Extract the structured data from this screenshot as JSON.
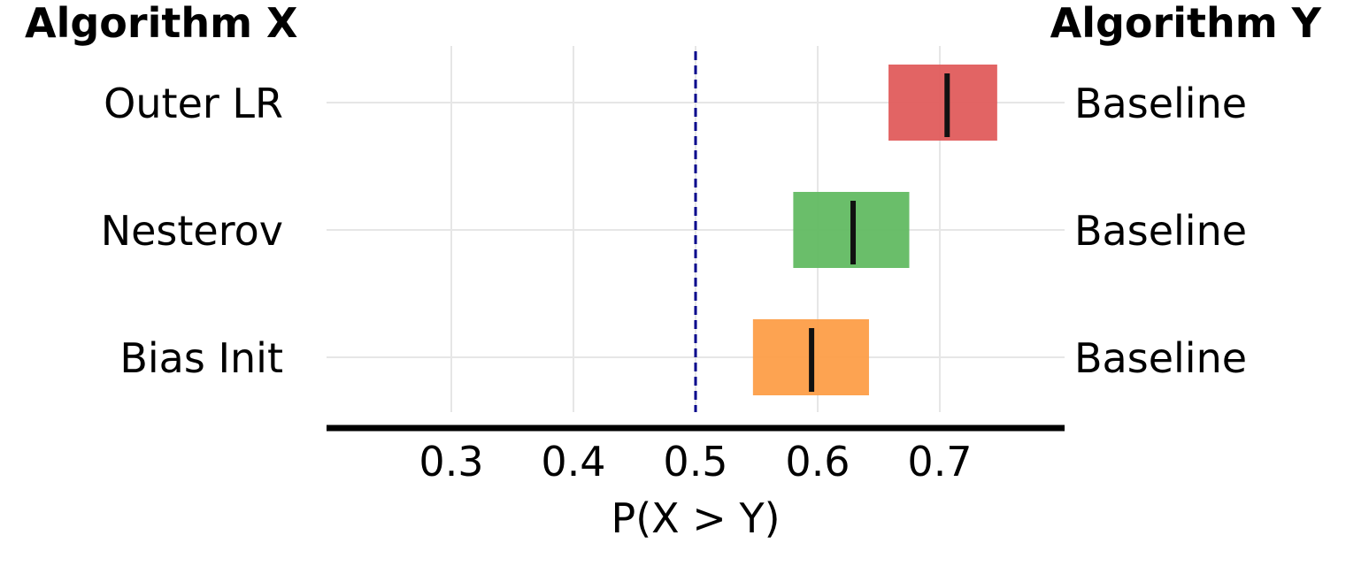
{
  "chart_data": {
    "type": "interval",
    "header_left": "Algorithm X",
    "header_right": "Algorithm Y",
    "xlabel": "P(X > Y)",
    "xlim": [
      0.2,
      0.8
    ],
    "xticks": [
      0.3,
      0.4,
      0.5,
      0.6,
      0.7
    ],
    "xtick_labels": [
      "0.3",
      "0.4",
      "0.5",
      "0.6",
      "0.7"
    ],
    "reference_line": 0.5,
    "reference_color": "#00008b",
    "grid": true,
    "rows": [
      {
        "left": "Outer LR",
        "right": "Baseline",
        "low": 0.658,
        "high": 0.747,
        "point": 0.706,
        "color": "#e05c5c"
      },
      {
        "left": "Nesterov",
        "right": "Baseline",
        "low": 0.58,
        "high": 0.675,
        "point": 0.629,
        "color": "#62bb62"
      },
      {
        "left": "Bias Init",
        "right": "Baseline",
        "low": 0.547,
        "high": 0.642,
        "point": 0.595,
        "color": "#fd9e48"
      }
    ]
  }
}
